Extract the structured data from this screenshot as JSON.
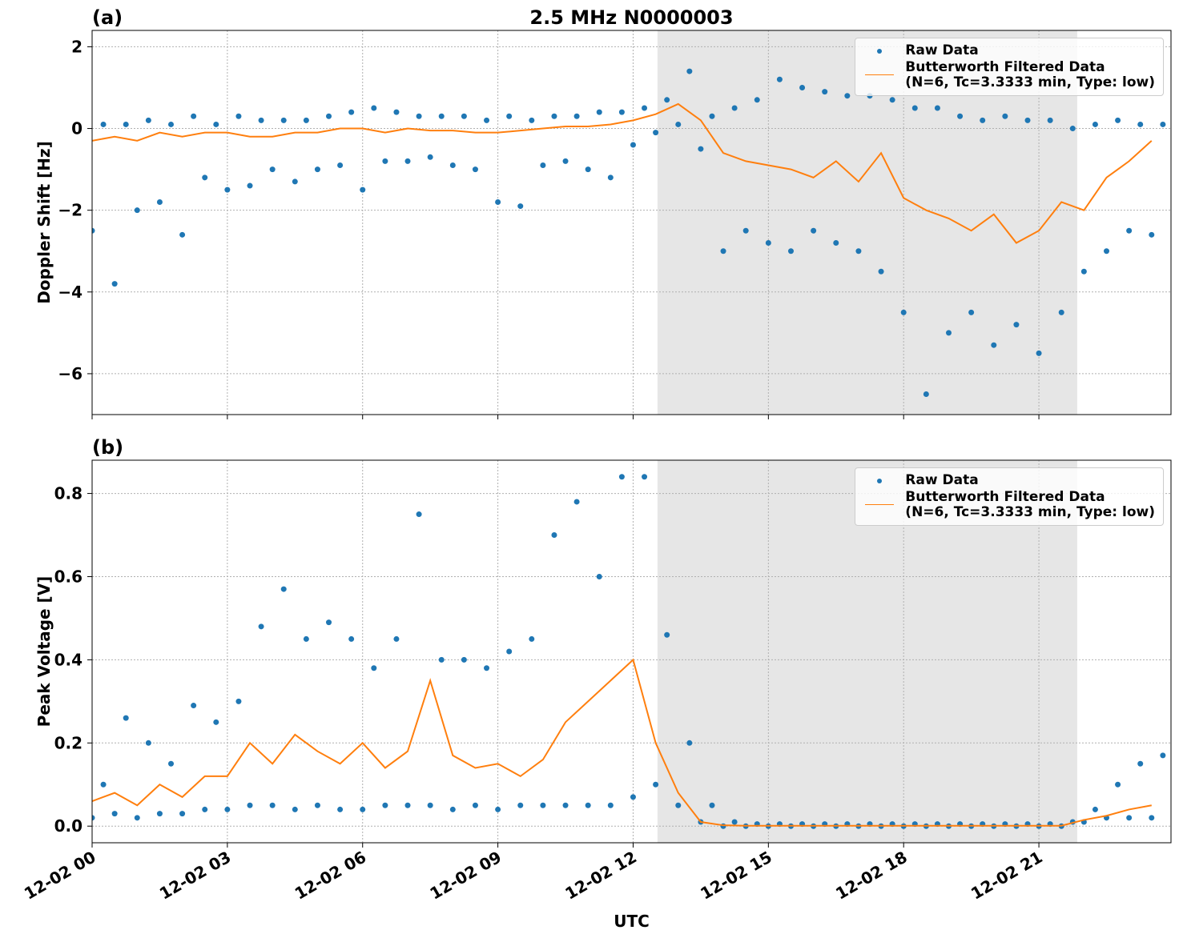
{
  "chart_data": [
    {
      "type": "line",
      "title": "2.5 MHz N0000003",
      "panel_label": "(a)",
      "ylabel": "Doppler Shift [Hz]",
      "xlim": [
        0,
        23.93
      ],
      "ylim": [
        -7.0,
        2.4
      ],
      "yticks": [
        {
          "value": -6,
          "label": "−6"
        },
        {
          "value": -4,
          "label": "−4"
        },
        {
          "value": -2,
          "label": "−2"
        },
        0,
        2
      ],
      "grid": true,
      "legend": "upper right",
      "shaded_span": [
        12.54,
        21.85
      ],
      "series": [
        {
          "name": "Raw Data",
          "style": "markers",
          "color": "#1f77b4",
          "x": [
            0,
            0.25,
            0.5,
            0.75,
            1,
            1.25,
            1.5,
            1.75,
            2,
            2.25,
            2.5,
            2.75,
            3,
            3.25,
            3.5,
            3.75,
            4,
            4.25,
            4.5,
            4.75,
            5,
            5.25,
            5.5,
            5.75,
            6,
            6.25,
            6.5,
            6.75,
            7,
            7.25,
            7.5,
            7.75,
            8,
            8.25,
            8.5,
            8.75,
            9,
            9.25,
            9.5,
            9.75,
            10,
            10.25,
            10.5,
            10.75,
            11,
            11.25,
            11.5,
            11.75,
            12,
            12.25,
            12.5,
            12.75,
            13,
            13.25,
            13.5,
            13.75,
            14,
            14.25,
            14.5,
            14.75,
            15,
            15.25,
            15.5,
            15.75,
            16,
            16.25,
            16.5,
            16.75,
            17,
            17.25,
            17.5,
            17.75,
            18,
            18.25,
            18.5,
            18.75,
            19,
            19.25,
            19.5,
            19.75,
            20,
            20.25,
            20.5,
            20.75,
            21,
            21.25,
            21.5,
            21.75,
            22,
            22.25,
            22.5,
            22.75,
            23,
            23.25,
            23.5,
            23.75
          ],
          "values": [
            -2.5,
            0.1,
            -3.8,
            0.1,
            -2.0,
            0.2,
            -1.8,
            0.1,
            -2.6,
            0.3,
            -1.2,
            0.1,
            -1.5,
            0.3,
            -1.4,
            0.2,
            -1.0,
            0.2,
            -1.3,
            0.2,
            -1.0,
            0.3,
            -0.9,
            0.4,
            -1.5,
            0.5,
            -0.8,
            0.4,
            -0.8,
            0.3,
            -0.7,
            0.3,
            -0.9,
            0.3,
            -1.0,
            0.2,
            -1.8,
            0.3,
            -1.9,
            0.2,
            -0.9,
            0.3,
            -0.8,
            0.3,
            -1.0,
            0.4,
            -1.2,
            0.4,
            -0.4,
            0.5,
            -0.1,
            0.7,
            0.1,
            1.4,
            -0.5,
            0.3,
            -3.0,
            0.5,
            -2.5,
            0.7,
            -2.8,
            1.2,
            -3.0,
            1.0,
            -2.5,
            0.9,
            -2.8,
            0.8,
            -3.0,
            0.8,
            -3.5,
            0.7,
            -4.5,
            0.5,
            -6.5,
            0.5,
            -5.0,
            0.3,
            -4.5,
            0.2,
            -5.3,
            0.3,
            -4.8,
            0.2,
            -5.5,
            0.2,
            -4.5,
            0.0,
            -3.5,
            0.1,
            -3.0,
            0.2,
            -2.5,
            0.1,
            -2.6,
            0.1
          ]
        },
        {
          "name": "Butterworth Filtered Data\n(N=6, Tc=3.3333 min, Type: low)",
          "style": "line",
          "color": "#ff7f0e",
          "x": [
            0,
            0.5,
            1,
            1.5,
            2,
            2.5,
            3,
            3.5,
            4,
            4.5,
            5,
            5.5,
            6,
            6.5,
            7,
            7.5,
            8,
            8.5,
            9,
            9.5,
            10,
            10.5,
            11,
            11.5,
            12,
            12.5,
            13,
            13.5,
            14,
            14.5,
            15,
            15.5,
            16,
            16.5,
            17,
            17.5,
            18,
            18.5,
            19,
            19.5,
            20,
            20.5,
            21,
            21.5,
            22,
            22.5,
            23,
            23.5
          ],
          "values": [
            -0.3,
            -0.2,
            -0.3,
            -0.1,
            -0.2,
            -0.1,
            -0.1,
            -0.2,
            -0.2,
            -0.1,
            -0.1,
            0.0,
            0.0,
            -0.1,
            0.0,
            -0.05,
            -0.05,
            -0.1,
            -0.1,
            -0.05,
            0.0,
            0.05,
            0.05,
            0.1,
            0.2,
            0.35,
            0.6,
            0.2,
            -0.6,
            -0.8,
            -0.9,
            -1.0,
            -1.2,
            -0.8,
            -1.3,
            -0.6,
            -1.7,
            -2.0,
            -2.2,
            -2.5,
            -2.1,
            -2.8,
            -2.5,
            -1.8,
            -2.0,
            -1.2,
            -0.8,
            -0.3
          ]
        }
      ]
    },
    {
      "type": "line",
      "panel_label": "(b)",
      "ylabel": "Peak Voltage [V]",
      "xlabel": "UTC",
      "xlim": [
        0,
        23.93
      ],
      "ylim": [
        -0.04,
        0.88
      ],
      "xticks": [
        {
          "value": 0,
          "label": "12-02 00"
        },
        {
          "value": 3,
          "label": "12-02 03"
        },
        {
          "value": 6,
          "label": "12-02 06"
        },
        {
          "value": 9,
          "label": "12-02 09"
        },
        {
          "value": 12,
          "label": "12-02 12"
        },
        {
          "value": 15,
          "label": "12-02 15"
        },
        {
          "value": 18,
          "label": "12-02 18"
        },
        {
          "value": 21,
          "label": "12-02 21"
        }
      ],
      "yticks": [
        {
          "value": 0,
          "label": "0.0"
        },
        0.2,
        0.4,
        0.6,
        0.8
      ],
      "grid": true,
      "legend": "upper right",
      "shaded_span": [
        12.54,
        21.85
      ],
      "series": [
        {
          "name": "Raw Data",
          "style": "markers",
          "color": "#1f77b4",
          "x": [
            0,
            0.25,
            0.5,
            0.75,
            1,
            1.25,
            1.5,
            1.75,
            2,
            2.25,
            2.5,
            2.75,
            3,
            3.25,
            3.5,
            3.75,
            4,
            4.25,
            4.5,
            4.75,
            5,
            5.25,
            5.5,
            5.75,
            6,
            6.25,
            6.5,
            6.75,
            7,
            7.25,
            7.5,
            7.75,
            8,
            8.25,
            8.5,
            8.75,
            9,
            9.25,
            9.5,
            9.75,
            10,
            10.25,
            10.5,
            10.75,
            11,
            11.25,
            11.5,
            11.75,
            12,
            12.25,
            12.5,
            12.75,
            13,
            13.25,
            13.5,
            13.75,
            14,
            14.25,
            14.5,
            14.75,
            15,
            15.25,
            15.5,
            15.75,
            16,
            16.25,
            16.5,
            16.75,
            17,
            17.25,
            17.5,
            17.75,
            18,
            18.25,
            18.5,
            18.75,
            19,
            19.25,
            19.5,
            19.75,
            20,
            20.25,
            20.5,
            20.75,
            21,
            21.25,
            21.5,
            21.75,
            22,
            22.25,
            22.5,
            22.75,
            23,
            23.25,
            23.5,
            23.75
          ],
          "values": [
            0.02,
            0.1,
            0.03,
            0.26,
            0.02,
            0.2,
            0.03,
            0.15,
            0.03,
            0.29,
            0.04,
            0.25,
            0.04,
            0.3,
            0.05,
            0.48,
            0.05,
            0.57,
            0.04,
            0.45,
            0.05,
            0.49,
            0.04,
            0.45,
            0.04,
            0.38,
            0.05,
            0.45,
            0.05,
            0.75,
            0.05,
            0.4,
            0.04,
            0.4,
            0.05,
            0.38,
            0.04,
            0.42,
            0.05,
            0.45,
            0.05,
            0.7,
            0.05,
            0.78,
            0.05,
            0.6,
            0.05,
            0.84,
            0.07,
            0.84,
            0.1,
            0.46,
            0.05,
            0.2,
            0.01,
            0.05,
            0.0,
            0.01,
            0.0,
            0.005,
            0.0,
            0.005,
            0.0,
            0.005,
            0.0,
            0.005,
            0.0,
            0.005,
            0.0,
            0.005,
            0.0,
            0.005,
            0.0,
            0.005,
            0.0,
            0.005,
            0.0,
            0.005,
            0.0,
            0.005,
            0.0,
            0.005,
            0.0,
            0.005,
            0.0,
            0.005,
            0.0,
            0.01,
            0.01,
            0.04,
            0.02,
            0.1,
            0.02,
            0.15,
            0.02,
            0.17
          ]
        },
        {
          "name": "Butterworth Filtered Data\n(N=6, Tc=3.3333 min, Type: low)",
          "style": "line",
          "color": "#ff7f0e",
          "x": [
            0,
            0.5,
            1,
            1.5,
            2,
            2.5,
            3,
            3.5,
            4,
            4.5,
            5,
            5.5,
            6,
            6.5,
            7,
            7.5,
            8,
            8.5,
            9,
            9.5,
            10,
            10.5,
            11,
            11.5,
            12,
            12.5,
            13,
            13.5,
            14,
            14.5,
            15,
            15.5,
            16,
            16.5,
            17,
            17.5,
            18,
            18.5,
            19,
            19.5,
            20,
            20.5,
            21,
            21.5,
            22,
            22.5,
            23,
            23.5
          ],
          "values": [
            0.06,
            0.08,
            0.05,
            0.1,
            0.07,
            0.12,
            0.12,
            0.2,
            0.15,
            0.22,
            0.18,
            0.15,
            0.2,
            0.14,
            0.18,
            0.35,
            0.17,
            0.14,
            0.15,
            0.12,
            0.16,
            0.25,
            0.3,
            0.35,
            0.4,
            0.2,
            0.08,
            0.01,
            0.002,
            0.001,
            0.001,
            0.001,
            0.001,
            0.001,
            0.001,
            0.001,
            0.001,
            0.001,
            0.001,
            0.001,
            0.001,
            0.001,
            0.001,
            0.001,
            0.015,
            0.025,
            0.04,
            0.05
          ]
        }
      ]
    }
  ]
}
